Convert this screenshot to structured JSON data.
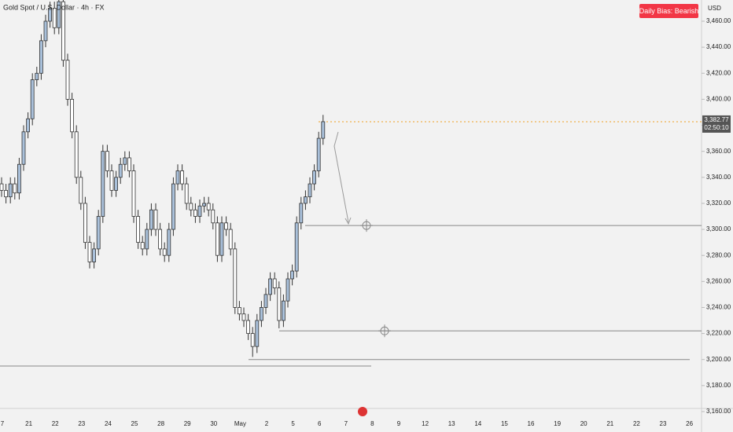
{
  "chart_data": {
    "type": "candlestick",
    "title": "Gold Spot / U.S. Dollar · 4h · FX",
    "badge": "Daily Bias: Bearish",
    "currency": "USD",
    "last_price": {
      "value": 3382.77,
      "label": "3,382.77"
    },
    "countdown": "02:50:10",
    "categories": [
      "7",
      "21",
      "22",
      "23",
      "24",
      "25",
      "28",
      "29",
      "30",
      "May",
      "2",
      "5",
      "6",
      "7",
      "8",
      "9",
      "12",
      "13",
      "14",
      "15",
      "16",
      "19",
      "20",
      "21",
      "22",
      "23",
      "26"
    ],
    "open": [
      3335,
      3330,
      3325,
      3335,
      3328,
      3350,
      3375,
      3385,
      3415,
      3420,
      3445,
      3460,
      3470,
      3455,
      3475,
      3430,
      3400,
      3375,
      3340,
      3320,
      3290,
      3275,
      3285,
      3310,
      3360,
      3345,
      3330,
      3340,
      3350,
      3355,
      3345,
      3310,
      3290,
      3285,
      3300,
      3315,
      3300,
      3285,
      3280,
      3300,
      3335,
      3345,
      3335,
      3320,
      3315,
      3310,
      3318,
      3320,
      3315,
      3305,
      3280,
      3305,
      3300,
      3285,
      3240,
      3235,
      3230,
      3220,
      3210,
      3230,
      3240,
      3250,
      3262,
      3255,
      3230,
      3245,
      3262,
      3268,
      3305,
      3320,
      3325,
      3335,
      3345,
      3370
    ],
    "high": [
      3340,
      3335,
      3340,
      3340,
      3355,
      3380,
      3390,
      3420,
      3425,
      3450,
      3465,
      3475,
      3475,
      3480,
      3480,
      3435,
      3405,
      3380,
      3345,
      3325,
      3295,
      3290,
      3315,
      3365,
      3365,
      3350,
      3345,
      3355,
      3360,
      3360,
      3350,
      3315,
      3295,
      3305,
      3320,
      3320,
      3305,
      3290,
      3305,
      3340,
      3350,
      3350,
      3340,
      3325,
      3320,
      3323,
      3325,
      3325,
      3320,
      3310,
      3310,
      3310,
      3305,
      3290,
      3245,
      3240,
      3235,
      3225,
      3235,
      3245,
      3255,
      3267,
      3267,
      3260,
      3250,
      3267,
      3273,
      3310,
      3325,
      3330,
      3340,
      3350,
      3375,
      3388
    ],
    "low": [
      3325,
      3320,
      3320,
      3323,
      3323,
      3345,
      3370,
      3380,
      3410,
      3415,
      3440,
      3455,
      3450,
      3450,
      3425,
      3395,
      3370,
      3335,
      3315,
      3285,
      3270,
      3270,
      3280,
      3305,
      3340,
      3325,
      3325,
      3335,
      3345,
      3340,
      3305,
      3285,
      3280,
      3280,
      3295,
      3295,
      3280,
      3275,
      3275,
      3295,
      3330,
      3330,
      3315,
      3310,
      3305,
      3305,
      3313,
      3310,
      3300,
      3275,
      3275,
      3295,
      3280,
      3235,
      3230,
      3225,
      3215,
      3202,
      3205,
      3225,
      3235,
      3245,
      3250,
      3224,
      3225,
      3240,
      3257,
      3263,
      3300,
      3315,
      3320,
      3330,
      3340,
      3365
    ],
    "close": [
      3330,
      3325,
      3335,
      3328,
      3350,
      3375,
      3385,
      3415,
      3420,
      3445,
      3460,
      3470,
      3455,
      3475,
      3430,
      3400,
      3375,
      3340,
      3320,
      3290,
      3275,
      3285,
      3310,
      3360,
      3345,
      3330,
      3340,
      3350,
      3355,
      3345,
      3310,
      3290,
      3285,
      3300,
      3315,
      3300,
      3285,
      3280,
      3300,
      3335,
      3345,
      3335,
      3320,
      3315,
      3310,
      3318,
      3320,
      3315,
      3305,
      3280,
      3305,
      3300,
      3285,
      3240,
      3235,
      3230,
      3220,
      3210,
      3230,
      3240,
      3250,
      3262,
      3255,
      3230,
      3245,
      3262,
      3268,
      3305,
      3320,
      3325,
      3335,
      3345,
      3370,
      3382.77
    ],
    "up_color": "#a9c0da",
    "down_color": "#ffffff",
    "levels": [
      3303,
      3222,
      3200,
      3195
    ],
    "ylim": [
      3162.4,
      3476.3
    ],
    "yticks": [
      {
        "value": 3160,
        "label": "3,160.00"
      },
      {
        "value": 3180,
        "label": "3,180.00"
      },
      {
        "value": 3200,
        "label": "3,200.00"
      },
      {
        "value": 3220,
        "label": "3,220.00"
      },
      {
        "value": 3240,
        "label": "3,240.00"
      },
      {
        "value": 3260,
        "label": "3,260.00"
      },
      {
        "value": 3280,
        "label": "3,280.00"
      },
      {
        "value": 3300,
        "label": "3,300.00"
      },
      {
        "value": 3320,
        "label": "3,320.00"
      },
      {
        "value": 3340,
        "label": "3,340.00"
      },
      {
        "value": 3360,
        "label": "3,360.00"
      },
      {
        "value": 3380,
        "label": "3,380.00"
      },
      {
        "value": 3400,
        "label": "3,400.00"
      },
      {
        "value": 3420,
        "label": "3,420.00"
      },
      {
        "value": 3440,
        "label": "3,440.00"
      },
      {
        "value": 3460,
        "label": "3,460.00"
      }
    ]
  }
}
